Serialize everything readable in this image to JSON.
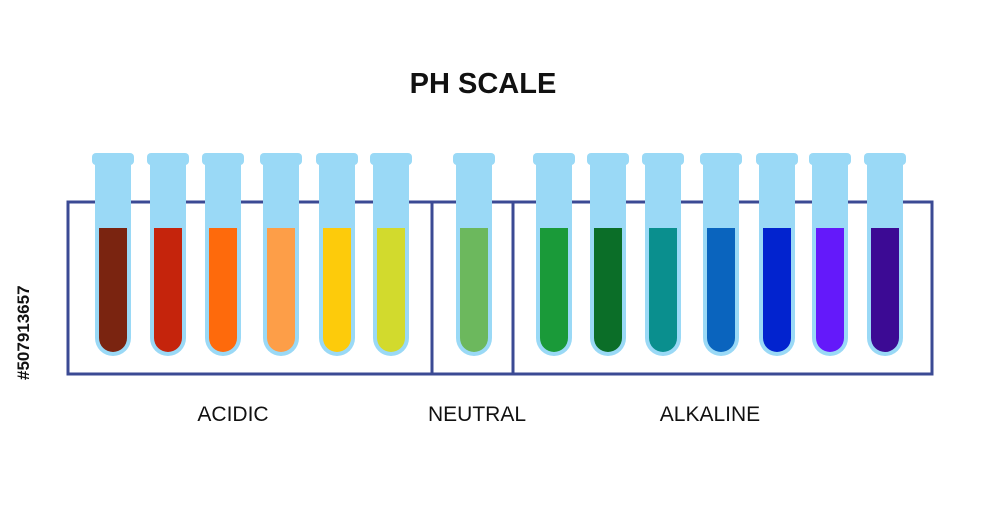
{
  "title": "PH SCALE",
  "groups": [
    "ACIDIC",
    "NEUTRAL",
    "ALKALINE"
  ],
  "stock_id": "#507913657",
  "tubes": [
    "#7a2410",
    "#c5240c",
    "#fe6a0c",
    "#fd9e48",
    "#fdcb0b",
    "#d2da2d",
    "#6cb85d",
    "#1a9a39",
    "#0b6e28",
    "#0a8f8e",
    "#0a64be",
    "#0223cf",
    "#6419fa",
    "#3c0a94"
  ]
}
